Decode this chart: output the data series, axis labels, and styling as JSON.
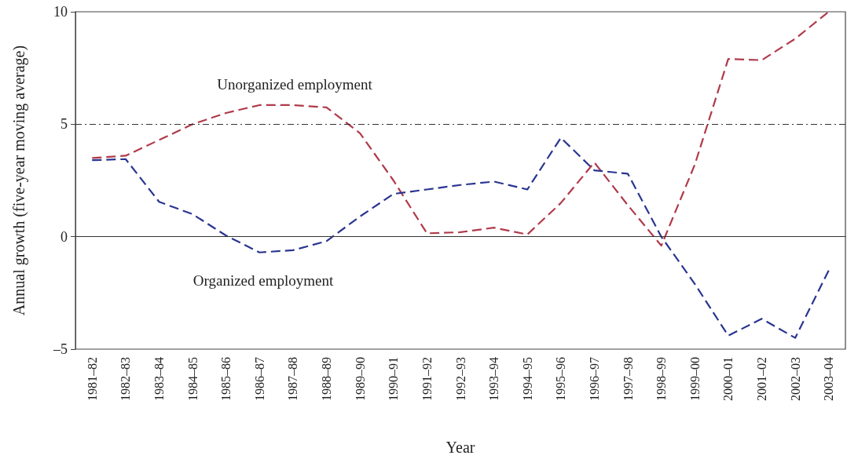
{
  "chart_data": {
    "type": "line",
    "xlabel": "Year",
    "ylabel": "Annual growth (five-year moving average)",
    "categories": [
      "1981–82",
      "1982–83",
      "1983–84",
      "1984–85",
      "1985–86",
      "1986–87",
      "1987–88",
      "1988–89",
      "1989–90",
      "1990–91",
      "1991–92",
      "1992–93",
      "1993–94",
      "1994–95",
      "1995–96",
      "1996–97",
      "1997–98",
      "1998–99",
      "1999–00",
      "2000–01",
      "2001–02",
      "2002–03",
      "2003–04"
    ],
    "series": [
      {
        "color": "#b03a4a",
        "line_style": "dashed",
        "values": [
          3.5,
          3.6,
          4.3,
          5.0,
          5.5,
          5.85,
          5.85,
          5.75,
          4.6,
          2.5,
          0.15,
          0.2,
          0.4,
          0.1,
          1.5,
          3.3,
          1.4,
          -0.4,
          3.2,
          7.9,
          7.85,
          8.8,
          10
        ]
      },
      {
        "color": "#2a3590",
        "line_style": "dashed",
        "values": [
          3.4,
          3.45,
          1.55,
          1.0,
          0.05,
          -0.7,
          -0.6,
          -0.2,
          0.9,
          1.9,
          2.1,
          2.3,
          2.45,
          2.1,
          4.4,
          2.95,
          2.8,
          0,
          -2.1,
          -4.4,
          -3.65,
          -4.5,
          -1.5
        ]
      }
    ],
    "ylim": [
      -5,
      10
    ],
    "yticks": [
      {
        "value": -5,
        "label": "–5"
      },
      0,
      5,
      10
    ],
    "ref_lines": [
      {
        "axis": "y",
        "value": 5,
        "color": "#333333",
        "line_style": "dashed"
      },
      {
        "axis": "y",
        "value": 0,
        "color": "#333333",
        "line_style": "solid"
      }
    ],
    "annotations": [
      "Unorganized employment",
      "Organized employment"
    ],
    "marker": "none",
    "grid": false
  }
}
